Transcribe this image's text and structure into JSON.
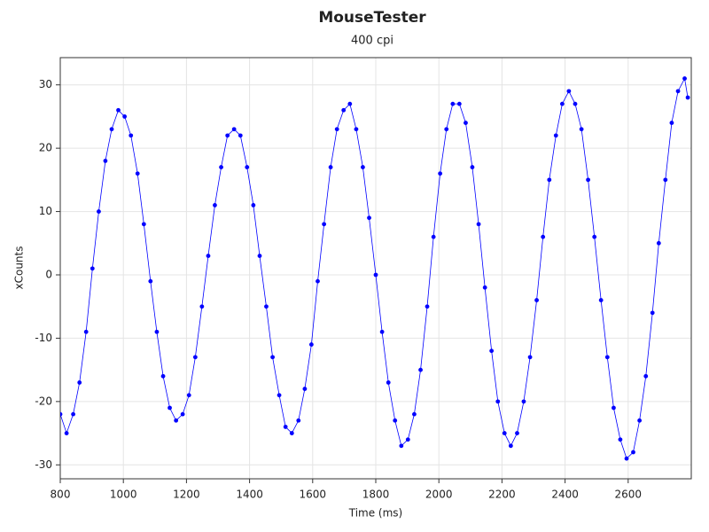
{
  "chart_data": {
    "type": "line",
    "title": "MouseTester",
    "subtitle": "400 cpi",
    "x_label": "Time (ms)",
    "y_label": "xCounts",
    "xlim": [
      800,
      2800
    ],
    "xticks": [
      800,
      1000,
      1200,
      1400,
      1600,
      1800,
      2000,
      2200,
      2400,
      2600
    ],
    "ylim": [
      -32.2,
      34.3
    ],
    "yticks": [
      -30,
      -20,
      -10,
      0,
      10,
      20,
      30
    ],
    "grid": true,
    "x": [
      800,
      820,
      841,
      861,
      882,
      902,
      922,
      943,
      963,
      984,
      1004,
      1024,
      1045,
      1065,
      1086,
      1106,
      1126,
      1147,
      1167,
      1188,
      1208,
      1228,
      1249,
      1269,
      1290,
      1310,
      1330,
      1351,
      1371,
      1392,
      1412,
      1432,
      1453,
      1473,
      1494,
      1514,
      1534,
      1555,
      1575,
      1596,
      1616,
      1636,
      1657,
      1677,
      1698,
      1718,
      1738,
      1759,
      1779,
      1800,
      1820,
      1840,
      1861,
      1881,
      1902,
      1922,
      1942,
      1963,
      1983,
      2004,
      2024,
      2044,
      2065,
      2085,
      2106,
      2126,
      2146,
      2167,
      2187,
      2208,
      2228,
      2248,
      2269,
      2289,
      2310,
      2330,
      2350,
      2371,
      2391,
      2412,
      2432,
      2452,
      2473,
      2493,
      2514,
      2534,
      2554,
      2575,
      2595,
      2616,
      2636,
      2656,
      2677,
      2697,
      2718,
      2738,
      2758,
      2779,
      2789
    ],
    "series": [
      {
        "name": "xCounts",
        "color": "#0000ff",
        "values": [
          -22,
          -25,
          -22,
          -17,
          -9,
          1,
          10,
          18,
          23,
          26,
          25,
          22,
          16,
          8,
          -1,
          -9,
          -16,
          -21,
          -23,
          -22,
          -19,
          -13,
          -5,
          3,
          11,
          17,
          22,
          23,
          22,
          17,
          11,
          3,
          -5,
          -13,
          -19,
          -24,
          -25,
          -23,
          -18,
          -11,
          -1,
          8,
          17,
          23,
          26,
          27,
          23,
          17,
          9,
          0,
          -9,
          -17,
          -23,
          -27,
          -26,
          -22,
          -15,
          -5,
          6,
          16,
          23,
          27,
          27,
          24,
          17,
          8,
          -2,
          -12,
          -20,
          -25,
          -27,
          -25,
          -20,
          -13,
          -4,
          6,
          15,
          22,
          27,
          29,
          27,
          23,
          15,
          6,
          -4,
          -13,
          -21,
          -26,
          -29,
          -28,
          -23,
          -16,
          -6,
          5,
          15,
          24,
          29,
          31,
          28
        ]
      }
    ]
  }
}
